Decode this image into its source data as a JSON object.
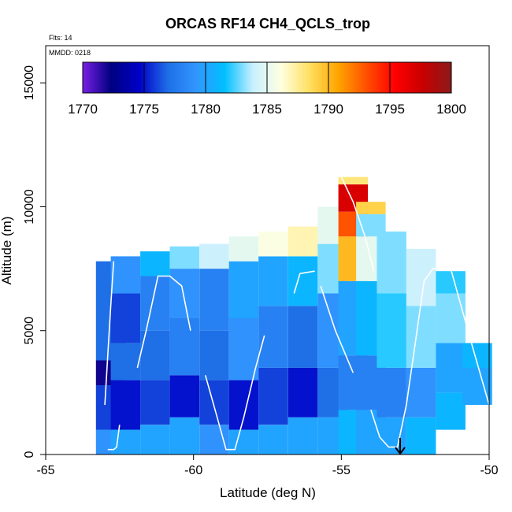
{
  "chart_data": {
    "type": "heatmap",
    "title": "ORCAS RF14 CH4_QCLS_trop",
    "notes": {
      "flights": "Flts: 14",
      "date": "MMDD: 0218"
    },
    "xlabel": "Latitude (deg N)",
    "ylabel": "Altitude (m)",
    "xlim": [
      -65,
      -50
    ],
    "ylim": [
      0,
      16500
    ],
    "x_ticks": [
      -65,
      -60,
      -55,
      -50
    ],
    "y_ticks": [
      0,
      5000,
      10000,
      15000
    ],
    "colorbar": {
      "ticks": [
        1770,
        1775,
        1780,
        1785,
        1790,
        1795,
        1800
      ],
      "range": [
        1770,
        1800
      ],
      "colors": [
        "#7a1fe6",
        "#000080",
        "#0000c8",
        "#1e6ee6",
        "#3296ff",
        "#00bfff",
        "#c8f0ff",
        "#ffffe0",
        "#ffe060",
        "#ffa500",
        "#ff5000",
        "#ff0000",
        "#c80000",
        "#8b1a1a"
      ]
    },
    "columns": [
      {
        "lat": -62.8,
        "bands": [
          [
            0,
            1000,
            1779
          ],
          [
            1000,
            2800,
            1776
          ],
          [
            2800,
            3800,
            1772
          ],
          [
            3800,
            7800,
            1777
          ]
        ]
      },
      {
        "lat": -62.3,
        "bands": [
          [
            0,
            1000,
            1780
          ],
          [
            1000,
            3000,
            1775
          ],
          [
            3000,
            4500,
            1777
          ],
          [
            4500,
            6500,
            1776
          ],
          [
            6500,
            8000,
            1779
          ]
        ]
      },
      {
        "lat": -61.3,
        "bands": [
          [
            0,
            1200,
            1780
          ],
          [
            1200,
            3000,
            1776
          ],
          [
            3000,
            5000,
            1777
          ],
          [
            5000,
            7200,
            1778
          ],
          [
            7200,
            8200,
            1781
          ]
        ]
      },
      {
        "lat": -60.3,
        "bands": [
          [
            0,
            1500,
            1780
          ],
          [
            1500,
            3200,
            1775
          ],
          [
            3200,
            5500,
            1778
          ],
          [
            5500,
            7500,
            1779
          ],
          [
            7500,
            8400,
            1783
          ]
        ]
      },
      {
        "lat": -59.3,
        "bands": [
          [
            0,
            1200,
            1779
          ],
          [
            1200,
            3000,
            1776
          ],
          [
            3000,
            5000,
            1777
          ],
          [
            5000,
            7500,
            1778
          ],
          [
            7500,
            8500,
            1784
          ]
        ]
      },
      {
        "lat": -58.3,
        "bands": [
          [
            0,
            1000,
            1780
          ],
          [
            1000,
            3000,
            1775
          ],
          [
            3000,
            5500,
            1779
          ],
          [
            5500,
            7800,
            1780
          ],
          [
            7800,
            8800,
            1785
          ]
        ]
      },
      {
        "lat": -57.3,
        "bands": [
          [
            0,
            1200,
            1780
          ],
          [
            1200,
            3500,
            1776
          ],
          [
            3500,
            6000,
            1778
          ],
          [
            6000,
            8000,
            1780
          ],
          [
            8000,
            9000,
            1786
          ]
        ]
      },
      {
        "lat": -56.3,
        "bands": [
          [
            0,
            1500,
            1780
          ],
          [
            1500,
            3500,
            1775
          ],
          [
            3500,
            6000,
            1777
          ],
          [
            6000,
            8000,
            1781
          ],
          [
            8000,
            9200,
            1787
          ]
        ]
      },
      {
        "lat": -55.3,
        "bands": [
          [
            0,
            1500,
            1780
          ],
          [
            1500,
            3500,
            1777
          ],
          [
            3500,
            6500,
            1779
          ],
          [
            6500,
            8500,
            1783
          ],
          [
            8500,
            10000,
            1785
          ]
        ]
      },
      {
        "lat": -54.6,
        "bands": [
          [
            0,
            1800,
            1781
          ],
          [
            1800,
            4000,
            1778
          ],
          [
            4000,
            7000,
            1780
          ],
          [
            7000,
            8800,
            1790
          ],
          [
            8800,
            9800,
            1793
          ],
          [
            9800,
            10900,
            1797
          ],
          [
            10900,
            11200,
            1788
          ]
        ]
      },
      {
        "lat": -54.0,
        "bands": [
          [
            0,
            1800,
            1780
          ],
          [
            1800,
            4000,
            1778
          ],
          [
            4000,
            7000,
            1781
          ],
          [
            7000,
            8800,
            1785
          ],
          [
            8800,
            9700,
            1783
          ],
          [
            9700,
            10200,
            1789
          ]
        ]
      },
      {
        "lat": -53.3,
        "bands": [
          [
            0,
            1500,
            1780
          ],
          [
            1500,
            3500,
            1778
          ],
          [
            3500,
            6500,
            1782
          ],
          [
            6500,
            9000,
            1783
          ]
        ]
      },
      {
        "lat": -52.3,
        "bands": [
          [
            0,
            1500,
            1781
          ],
          [
            1500,
            3500,
            1779
          ],
          [
            3500,
            6000,
            1783
          ],
          [
            6000,
            8300,
            1784
          ]
        ]
      },
      {
        "lat": -51.3,
        "bands": [
          [
            1000,
            2500,
            1781
          ],
          [
            2500,
            4500,
            1780
          ],
          [
            4500,
            6500,
            1783
          ],
          [
            6500,
            7400,
            1782
          ]
        ]
      },
      {
        "lat": -50.4,
        "bands": [
          [
            2000,
            3500,
            1780
          ],
          [
            3500,
            4500,
            1781
          ]
        ]
      }
    ],
    "flight_track": [
      [
        [
          -62.9,
          200
        ],
        [
          -62.7,
          200
        ],
        [
          -62.6,
          300
        ],
        [
          -62.5,
          1200
        ]
      ],
      [
        [
          -63.0,
          2000
        ],
        [
          -62.9,
          4000
        ],
        [
          -62.8,
          6000
        ],
        [
          -62.7,
          7800
        ]
      ],
      [
        [
          -61.9,
          3500
        ],
        [
          -61.6,
          5000
        ],
        [
          -61.2,
          7200
        ],
        [
          -60.8,
          7200
        ],
        [
          -60.4,
          6800
        ],
        [
          -60.1,
          5000
        ]
      ],
      [
        [
          -59.6,
          3200
        ],
        [
          -59.2,
          1500
        ],
        [
          -58.9,
          200
        ],
        [
          -58.6,
          200
        ],
        [
          -58.3,
          1500
        ],
        [
          -57.9,
          3500
        ],
        [
          -57.6,
          4800
        ]
      ],
      [
        [
          -56.6,
          6500
        ],
        [
          -56.4,
          7300
        ],
        [
          -55.9,
          7400
        ]
      ],
      [
        [
          -55.7,
          6800
        ],
        [
          -55.2,
          5000
        ],
        [
          -54.6,
          3300
        ]
      ],
      [
        [
          -55.0,
          11200
        ],
        [
          -54.6,
          10200
        ],
        [
          -54.2,
          8800
        ],
        [
          -53.9,
          7400
        ]
      ],
      [
        [
          -54.0,
          1800
        ],
        [
          -53.7,
          700
        ],
        [
          -53.4,
          300
        ],
        [
          -53.1,
          300
        ],
        [
          -52.8,
          2000
        ],
        [
          -52.5,
          4500
        ],
        [
          -52.2,
          7000
        ],
        [
          -51.9,
          7500
        ],
        [
          -51.3,
          7500
        ],
        [
          -50.6,
          4500
        ],
        [
          -50.0,
          2000
        ]
      ]
    ]
  }
}
